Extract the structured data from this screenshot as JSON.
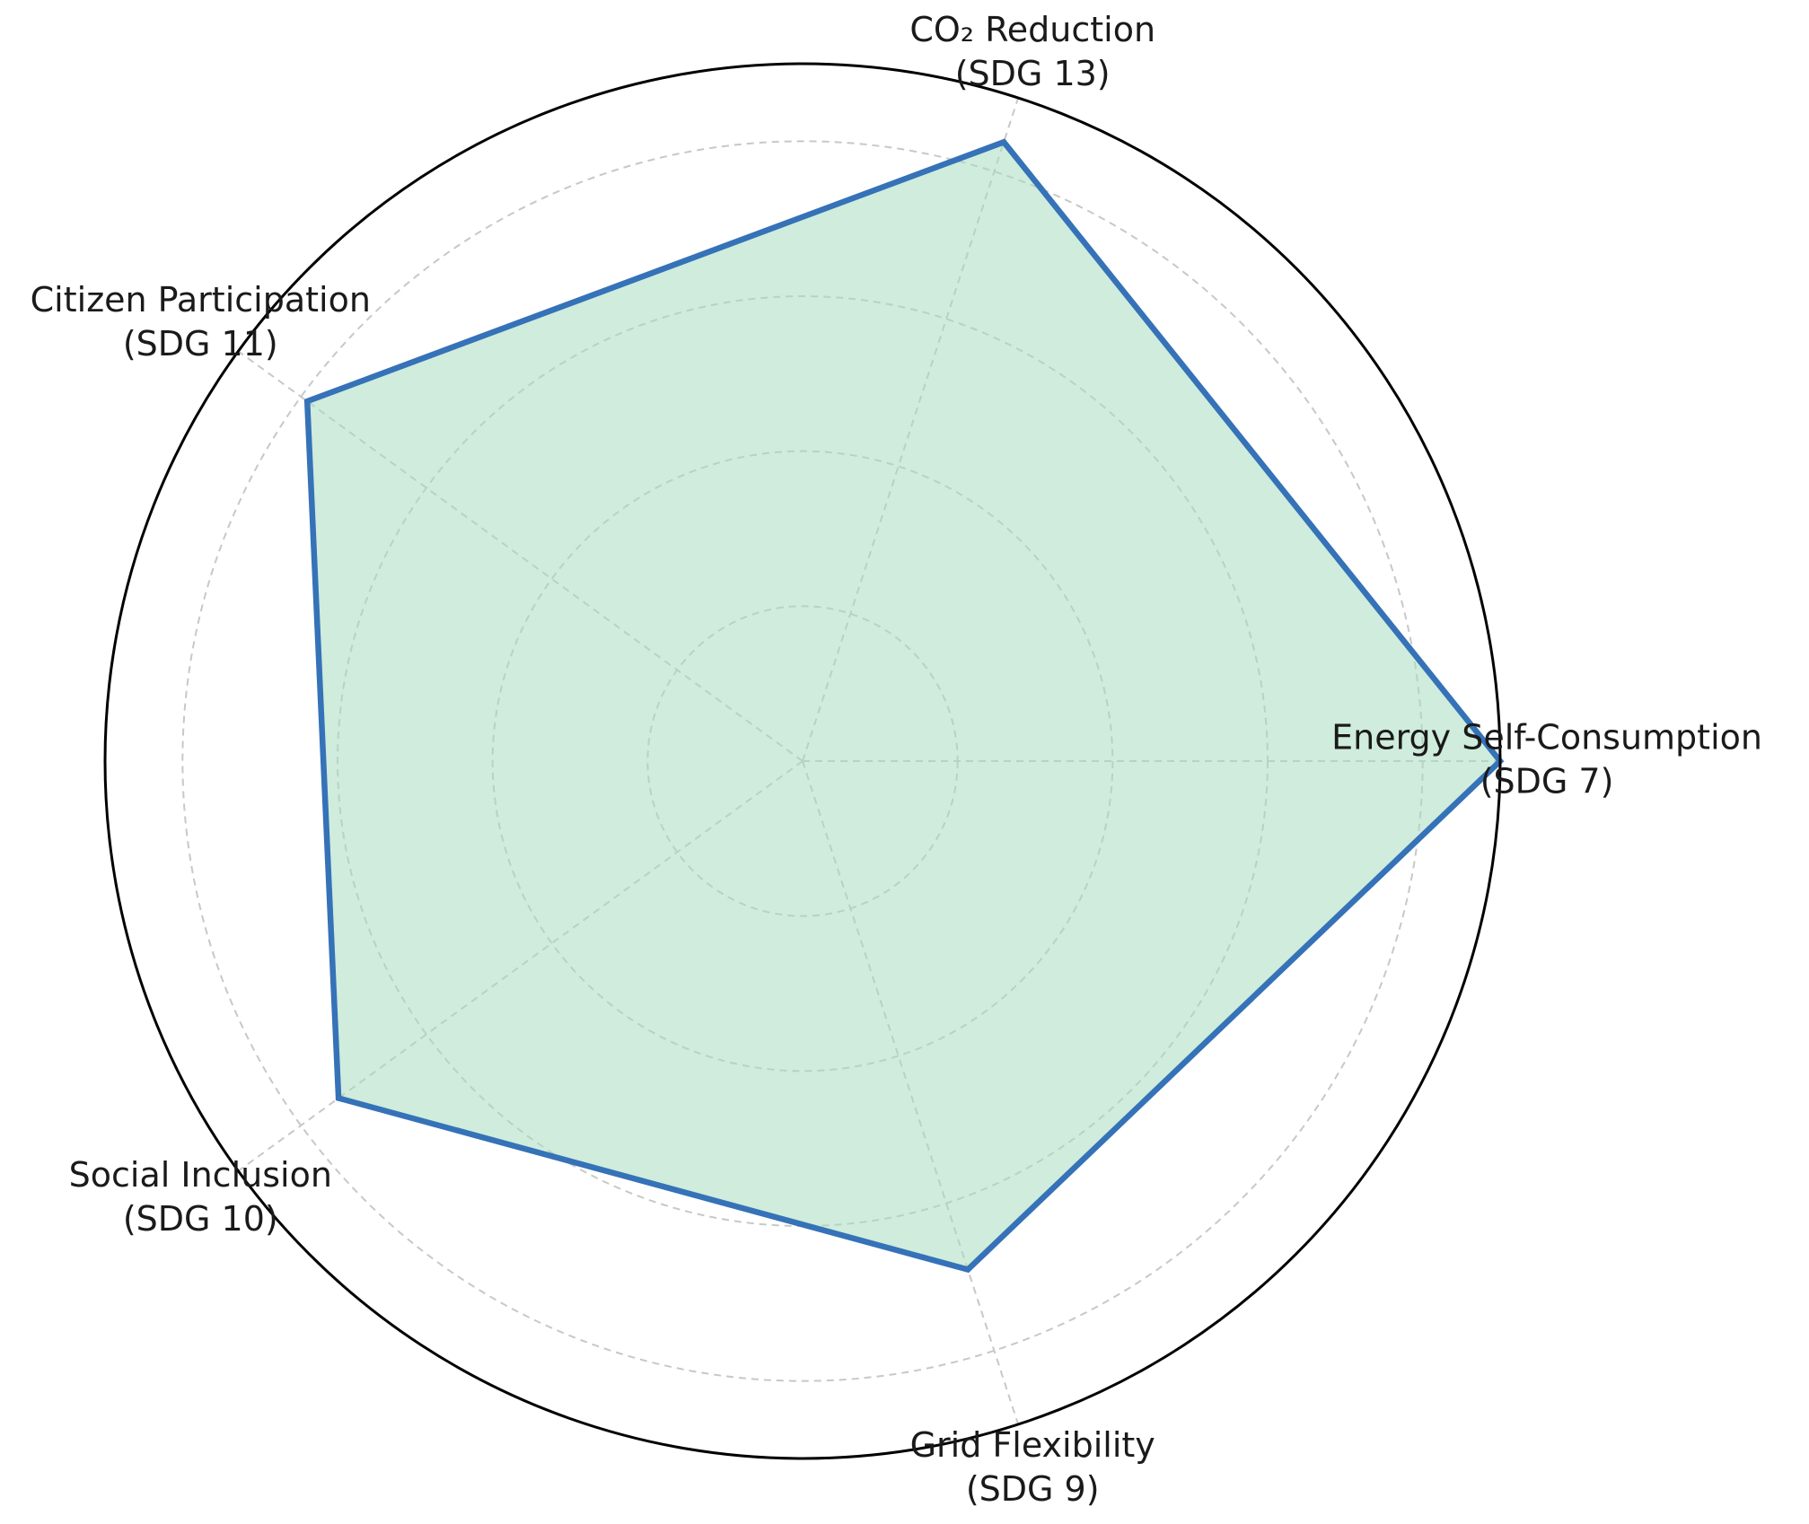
{
  "chart_data": {
    "type": "radar",
    "categories": [
      "Energy Self-Consumption\n(SDG 7)",
      "CO₂ Reduction\n(SDG 13)",
      "Citizen Participation\n(SDG 11)",
      "Social Inclusion\n(SDG 10)",
      "Grid Flexibility\n(SDG 9)"
    ],
    "values": [
      9,
      8.4,
      7.9,
      7.4,
      6.9
    ],
    "color": "#3572b8",
    "fill_color": "#a8dcc0",
    "ylim": [
      0,
      9
    ],
    "yticks": [
      2,
      4,
      6,
      8
    ],
    "grid": true
  }
}
